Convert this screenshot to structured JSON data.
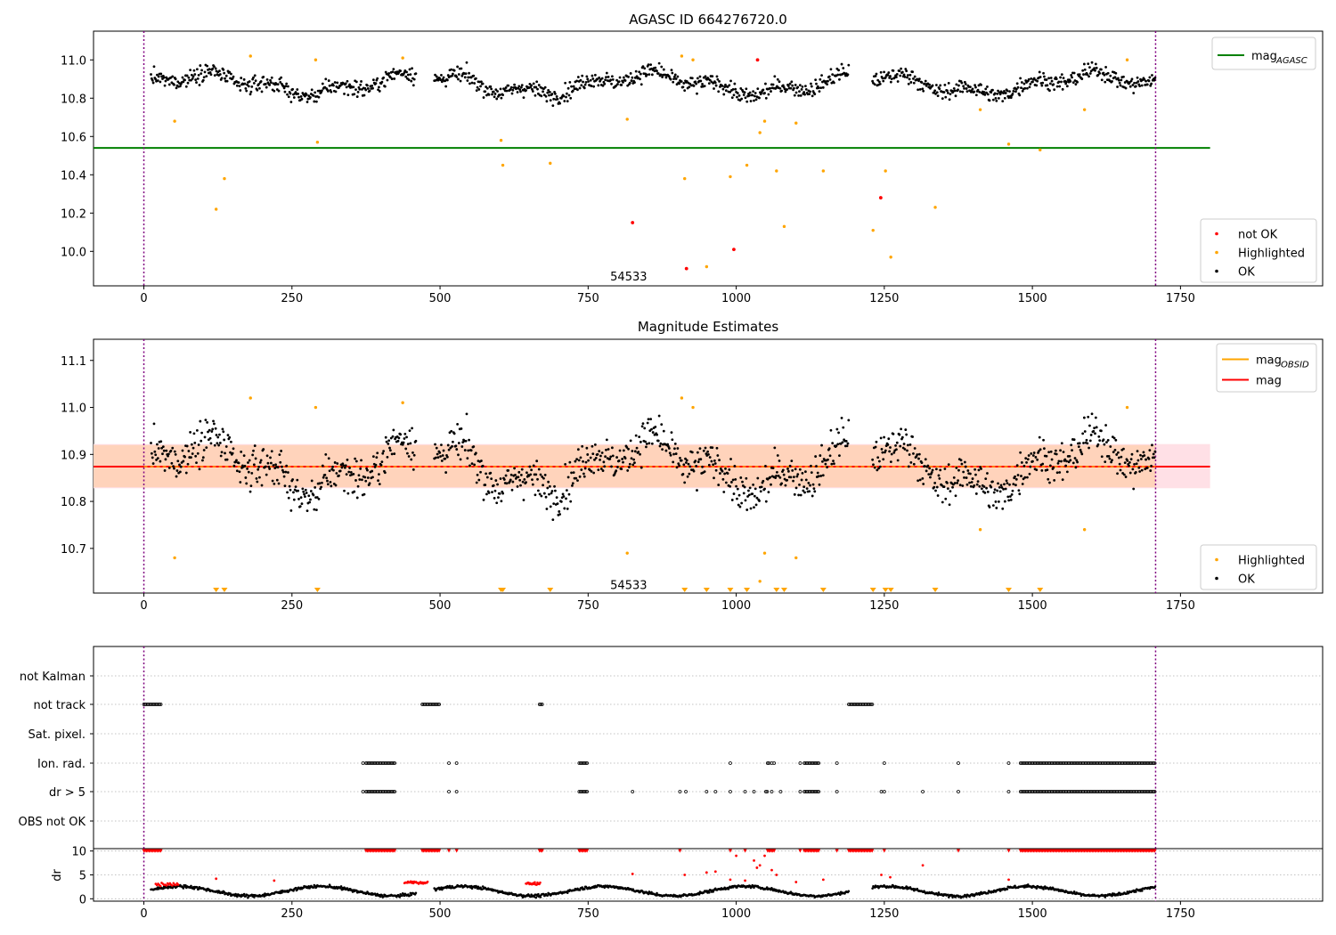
{
  "colors": {
    "ok": "#000000",
    "not_ok": "#ff0000",
    "highlighted": "#ffa500",
    "mag_agasc": "#008000",
    "mag": "#ff0000",
    "mag_obsid": "#ffa500",
    "band_inner": "#ffd0b0",
    "band_outer": "#ffe0e6",
    "vline": "#800080"
  },
  "chart_data": [
    {
      "type": "scatter",
      "title": "AGASC ID 664276720.0",
      "xlim": [
        -85,
        1990
      ],
      "ylim": [
        9.82,
        11.15
      ],
      "xticks": [
        0,
        250,
        500,
        750,
        1000,
        1250,
        1500,
        1750
      ],
      "yticks": [
        10.0,
        10.2,
        10.4,
        10.6,
        10.8,
        11.0
      ],
      "xtick_labels": [
        "0",
        "250",
        "500",
        "750",
        "1000",
        "1250",
        "1500",
        "1750"
      ],
      "ytick_labels": [
        "10.0",
        "10.2",
        "10.4",
        "10.6",
        "10.8",
        "11.0"
      ],
      "annotation": {
        "text": "54533",
        "x": 855,
        "y": 9.87
      },
      "vlines": [
        0,
        1708
      ],
      "hline_mag_agasc": {
        "y": 10.54,
        "x_range": [
          -85,
          1800
        ]
      },
      "legend_top": {
        "position": "upper right",
        "entries": [
          {
            "label": "mag",
            "subscript": "AGASC",
            "color_key": "mag_agasc"
          }
        ]
      },
      "legend_bottom": {
        "position": "lower right",
        "entries": [
          {
            "label": "not OK",
            "color_key": "not_ok"
          },
          {
            "label": "Highlighted",
            "color_key": "highlighted"
          },
          {
            "label": "OK",
            "color_key": "ok"
          }
        ]
      },
      "series_highlighted": [
        [
          52,
          10.68
        ],
        [
          122,
          10.22
        ],
        [
          136,
          10.38
        ],
        [
          180,
          11.02
        ],
        [
          293,
          10.57
        ],
        [
          290,
          11.0
        ],
        [
          437,
          11.01
        ],
        [
          603,
          10.58
        ],
        [
          606,
          10.45
        ],
        [
          686,
          10.46
        ],
        [
          816,
          10.69
        ],
        [
          908,
          11.02
        ],
        [
          913,
          10.38
        ],
        [
          927,
          11.0
        ],
        [
          950,
          9.92
        ],
        [
          990,
          10.39
        ],
        [
          1018,
          10.45
        ],
        [
          1040,
          10.62
        ],
        [
          1048,
          10.68
        ],
        [
          1068,
          10.42
        ],
        [
          1081,
          10.13
        ],
        [
          1101,
          10.67
        ],
        [
          1147,
          10.42
        ],
        [
          1231,
          10.11
        ],
        [
          1252,
          10.42
        ],
        [
          1261,
          9.97
        ],
        [
          1336,
          10.23
        ],
        [
          1412,
          10.74
        ],
        [
          1460,
          10.56
        ],
        [
          1513,
          10.53
        ],
        [
          1588,
          10.74
        ],
        [
          1660,
          11.0
        ]
      ],
      "series_not_ok": [
        [
          825,
          10.15
        ],
        [
          916,
          9.91
        ],
        [
          996,
          10.01
        ],
        [
          1036,
          11.0
        ],
        [
          1244,
          10.28
        ]
      ]
    },
    {
      "type": "scatter",
      "title": "Magnitude Estimates",
      "xlim": [
        -85,
        1990
      ],
      "ylim": [
        10.605,
        11.145
      ],
      "xticks": [
        0,
        250,
        500,
        750,
        1000,
        1250,
        1500,
        1750
      ],
      "yticks": [
        10.7,
        10.8,
        10.9,
        11.0,
        11.1
      ],
      "xtick_labels": [
        "0",
        "250",
        "500",
        "750",
        "1000",
        "1250",
        "1500",
        "1750"
      ],
      "ytick_labels": [
        "10.7",
        "10.8",
        "10.9",
        "11.0",
        "11.1"
      ],
      "annotation": {
        "text": "54533",
        "x": 855,
        "y": 10.623
      },
      "vlines": [
        0,
        1708
      ],
      "mag": 10.874,
      "band_inner": [
        10.83,
        10.92
      ],
      "band_outer": [
        10.828,
        10.922
      ],
      "band_x_range": [
        -85,
        1800
      ],
      "legend_top": {
        "position": "upper right",
        "entries": [
          {
            "label": "mag",
            "subscript": "OBSID",
            "color_key": "mag_obsid"
          },
          {
            "label": "mag",
            "subscript": "",
            "color_key": "mag"
          }
        ]
      },
      "legend_bottom": {
        "position": "lower right",
        "entries": [
          {
            "label": "Highlighted",
            "color_key": "highlighted"
          },
          {
            "label": "OK",
            "color_key": "ok"
          }
        ]
      },
      "series_highlighted": [
        [
          52,
          10.68
        ],
        [
          180,
          11.02
        ],
        [
          290,
          11.0
        ],
        [
          437,
          11.01
        ],
        [
          816,
          10.69
        ],
        [
          908,
          11.02
        ],
        [
          927,
          11.0
        ],
        [
          1040,
          10.63
        ],
        [
          1048,
          10.69
        ],
        [
          1101,
          10.68
        ],
        [
          1412,
          10.74
        ],
        [
          1588,
          10.74
        ],
        [
          1660,
          11.0
        ]
      ],
      "offscale_markers_x": [
        122,
        136,
        293,
        603,
        606,
        686,
        913,
        950,
        990,
        1018,
        1068,
        1081,
        1147,
        1231,
        1252,
        1261,
        1336,
        1460,
        1513
      ]
    },
    {
      "type": "scatter",
      "xlim": [
        -85,
        1990
      ],
      "categories": [
        "not Kalman",
        "not track",
        "Sat. pixel.",
        "Ion. rad.",
        "dr > 5",
        "OBS not OK"
      ],
      "vlines": [
        0,
        1708
      ],
      "flag_runs": {
        "not track": [
          [
            0,
            30
          ],
          [
            470,
            500
          ],
          [
            668,
            674
          ],
          [
            1190,
            1230
          ]
        ],
        "Ion. rad.": [
          [
            370,
            372
          ],
          [
            375,
            425
          ],
          [
            515,
            517
          ],
          [
            528,
            530
          ],
          [
            735,
            750
          ],
          [
            990,
            992
          ],
          [
            1053,
            1056
          ],
          [
            1060,
            1062
          ],
          [
            1064,
            1066
          ],
          [
            1108,
            1110
          ],
          [
            1115,
            1140
          ],
          [
            1170,
            1172
          ],
          [
            1250,
            1252
          ],
          [
            1375,
            1377
          ],
          [
            1460,
            1462
          ],
          [
            1480,
            1708
          ]
        ],
        "dr > 5": [
          [
            370,
            372
          ],
          [
            375,
            425
          ],
          [
            515,
            517
          ],
          [
            528,
            530
          ],
          [
            735,
            750
          ],
          [
            825,
            827
          ],
          [
            905,
            907
          ],
          [
            915,
            917
          ],
          [
            950,
            952
          ],
          [
            965,
            967
          ],
          [
            990,
            992
          ],
          [
            1015,
            1017
          ],
          [
            1030,
            1032
          ],
          [
            1050,
            1053
          ],
          [
            1060,
            1062
          ],
          [
            1075,
            1077
          ],
          [
            1108,
            1110
          ],
          [
            1115,
            1140
          ],
          [
            1170,
            1172
          ],
          [
            1245,
            1247
          ],
          [
            1250,
            1252
          ],
          [
            1315,
            1317
          ],
          [
            1375,
            1377
          ],
          [
            1460,
            1462
          ],
          [
            1480,
            1708
          ]
        ]
      }
    },
    {
      "type": "scatter",
      "ylabel": "dr",
      "xlim": [
        -85,
        1990
      ],
      "ylim": [
        -0.5,
        10.5
      ],
      "xticks": [
        0,
        250,
        500,
        750,
        1000,
        1250,
        1500,
        1750
      ],
      "yticks": [
        0,
        5,
        10
      ],
      "xtick_labels": [
        "0",
        "250",
        "500",
        "750",
        "1000",
        "1250",
        "1500",
        "1750"
      ],
      "ytick_labels": [
        "0",
        "5",
        "10"
      ],
      "vlines": [
        0,
        1708
      ],
      "clipped_value": 10,
      "clipped_runs": [
        [
          0,
          30
        ],
        [
          375,
          425
        ],
        [
          470,
          500
        ],
        [
          515,
          517
        ],
        [
          528,
          530
        ],
        [
          668,
          674
        ],
        [
          735,
          750
        ],
        [
          905,
          907
        ],
        [
          990,
          992
        ],
        [
          1015,
          1017
        ],
        [
          1053,
          1066
        ],
        [
          1108,
          1110
        ],
        [
          1115,
          1140
        ],
        [
          1170,
          1172
        ],
        [
          1190,
          1230
        ],
        [
          1250,
          1252
        ],
        [
          1375,
          1377
        ],
        [
          1460,
          1462
        ],
        [
          1480,
          1708
        ]
      ],
      "red_scatter": [
        [
          122,
          4.2
        ],
        [
          220,
          3.8
        ],
        [
          825,
          5.2
        ],
        [
          913,
          5.0
        ],
        [
          950,
          5.5
        ],
        [
          965,
          5.7
        ],
        [
          990,
          4.0
        ],
        [
          1015,
          3.8
        ],
        [
          1030,
          8.0
        ],
        [
          1040,
          7.0
        ],
        [
          1048,
          9.0
        ],
        [
          1060,
          6.0
        ],
        [
          1068,
          5.0
        ],
        [
          1101,
          3.5
        ],
        [
          1147,
          4.0
        ],
        [
          1245,
          5.0
        ],
        [
          1260,
          4.5
        ],
        [
          1315,
          7.0
        ],
        [
          1460,
          4.0
        ],
        [
          1000,
          9.0
        ],
        [
          1035,
          6.5
        ]
      ]
    }
  ]
}
